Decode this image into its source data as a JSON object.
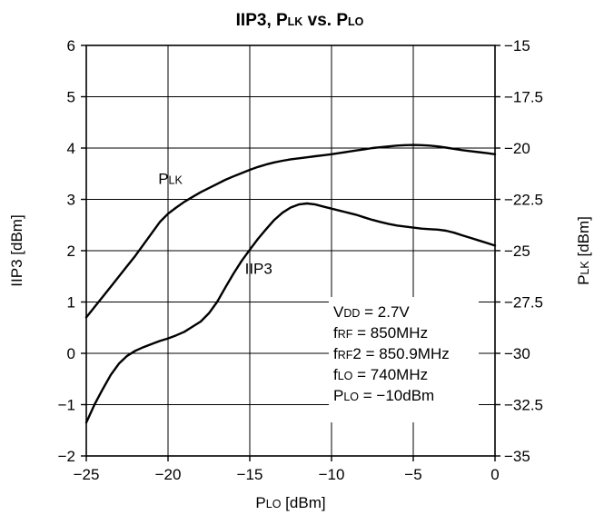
{
  "chart_data": {
    "type": "line",
    "title": {
      "main": "IIP3, P",
      "sub1": "LK",
      "mid": " vs. P",
      "sub2": "LO"
    },
    "xlabel": {
      "main": "P",
      "sub": "LO",
      "rest": " [dBm]"
    },
    "ylabel_left": "IIP3 [dBm]",
    "ylabel_right": {
      "main": "P",
      "sub": "LK",
      "rest": " [dBm]"
    },
    "xlim": [
      -25,
      0
    ],
    "ylim_left": [
      -2,
      6
    ],
    "ylim_right": [
      -35,
      -15
    ],
    "grid": true,
    "x_ticks": [
      -25,
      -20,
      -15,
      -10,
      -5,
      0
    ],
    "x_tick_labels": [
      "−25",
      "−20",
      "−15",
      "−10",
      "−5",
      "0"
    ],
    "y_left_ticks": [
      -2,
      -1,
      0,
      1,
      2,
      3,
      4,
      5,
      6
    ],
    "y_left_tick_labels": [
      "−2",
      "−1",
      "0",
      "1",
      "2",
      "3",
      "4",
      "5",
      "6"
    ],
    "y_right_ticks": [
      -35,
      -32.5,
      -30,
      -27.5,
      -25,
      -22.5,
      -20,
      -17.5,
      -15
    ],
    "y_right_tick_labels": [
      "−35",
      "−32.5",
      "−30",
      "−27.5",
      "−25",
      "−22.5",
      "−20",
      "−17.5",
      "−15"
    ],
    "series": [
      {
        "name": "IIP3",
        "axis": "left",
        "label": {
          "main": "IIP3",
          "sub": ""
        },
        "label_at": [
          -15.3,
          1.55
        ],
        "x": [
          -25,
          -24.5,
          -24,
          -23.5,
          -23,
          -22.5,
          -22,
          -21.5,
          -21,
          -20.5,
          -20,
          -19.5,
          -19,
          -18.5,
          -18,
          -17.5,
          -17,
          -16.5,
          -16,
          -15.5,
          -15,
          -14.5,
          -14,
          -13.5,
          -13,
          -12.5,
          -12,
          -11.5,
          -11,
          -10.5,
          -10,
          -9.5,
          -9,
          -8.5,
          -8,
          -7.5,
          -7,
          -6.5,
          -6,
          -5.5,
          -5,
          -4.5,
          -4,
          -3.5,
          -3,
          -2.5,
          -2,
          -1.5,
          -1,
          -0.5,
          0
        ],
        "y": [
          -1.35,
          -1.0,
          -0.7,
          -0.42,
          -0.2,
          -0.05,
          0.05,
          0.12,
          0.18,
          0.24,
          0.29,
          0.35,
          0.42,
          0.52,
          0.62,
          0.78,
          1.0,
          1.28,
          1.55,
          1.8,
          2.02,
          2.23,
          2.42,
          2.6,
          2.74,
          2.84,
          2.9,
          2.92,
          2.9,
          2.86,
          2.82,
          2.78,
          2.74,
          2.7,
          2.65,
          2.6,
          2.56,
          2.52,
          2.49,
          2.47,
          2.45,
          2.43,
          2.42,
          2.41,
          2.39,
          2.35,
          2.3,
          2.25,
          2.2,
          2.15,
          2.1
        ]
      },
      {
        "name": "PLK",
        "axis": "right",
        "label": {
          "main": "P",
          "sub": "LK"
        },
        "label_at": [
          -20.6,
          3.3
        ],
        "x": [
          -25,
          -24.5,
          -24,
          -23.5,
          -23,
          -22.5,
          -22,
          -21.5,
          -21,
          -20.5,
          -20,
          -19.5,
          -19,
          -18.5,
          -18,
          -17.5,
          -17,
          -16.5,
          -16,
          -15.5,
          -15,
          -14.5,
          -14,
          -13.5,
          -13,
          -12.5,
          -12,
          -11.5,
          -11,
          -10.5,
          -10,
          -9.5,
          -9,
          -8.5,
          -8,
          -7.5,
          -7,
          -6.5,
          -6,
          -5.5,
          -5,
          -4.5,
          -4,
          -3.5,
          -3,
          -2.5,
          -2,
          -1.5,
          -1,
          -0.5,
          0
        ],
        "y": [
          -28.25,
          -27.75,
          -27.25,
          -26.75,
          -26.25,
          -25.75,
          -25.25,
          -24.7,
          -24.15,
          -23.6,
          -23.2,
          -22.9,
          -22.62,
          -22.38,
          -22.15,
          -21.95,
          -21.75,
          -21.55,
          -21.38,
          -21.22,
          -21.06,
          -20.92,
          -20.8,
          -20.7,
          -20.62,
          -20.55,
          -20.5,
          -20.45,
          -20.4,
          -20.35,
          -20.3,
          -20.24,
          -20.18,
          -20.12,
          -20.06,
          -20.0,
          -19.96,
          -19.92,
          -19.88,
          -19.86,
          -19.85,
          -19.86,
          -19.88,
          -19.92,
          -19.98,
          -20.04,
          -20.1,
          -20.15,
          -20.2,
          -20.25,
          -20.3
        ]
      }
    ],
    "conditions": [
      {
        "main": "V",
        "sub": "DD",
        "rest": " = 2.7V"
      },
      {
        "main": "f",
        "sub": "RF",
        "rest": " = 850MHz"
      },
      {
        "main": "f",
        "sub": "RF",
        "rest": "2 = 850.9MHz"
      },
      {
        "main": "f",
        "sub": "LO",
        "rest": " = 740MHz"
      },
      {
        "main": "P",
        "sub": "LO",
        "rest": " = −10dBm"
      }
    ]
  }
}
